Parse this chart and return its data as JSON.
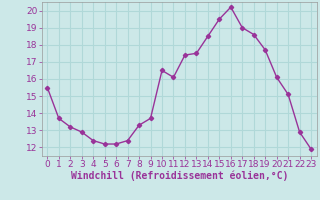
{
  "x": [
    0,
    1,
    2,
    3,
    4,
    5,
    6,
    7,
    8,
    9,
    10,
    11,
    12,
    13,
    14,
    15,
    16,
    17,
    18,
    19,
    20,
    21,
    22,
    23
  ],
  "y": [
    15.5,
    13.7,
    13.2,
    12.9,
    12.4,
    12.2,
    12.2,
    12.4,
    13.3,
    13.7,
    16.5,
    16.1,
    17.4,
    17.5,
    18.5,
    19.5,
    20.2,
    19.0,
    18.6,
    17.7,
    16.1,
    15.1,
    12.9,
    11.9
  ],
  "line_color": "#993399",
  "marker": "D",
  "marker_size": 2.2,
  "bg_color": "#cce8e8",
  "grid_color": "#b0d8d8",
  "xlabel": "Windchill (Refroidissement éolien,°C)",
  "xlabel_fontsize": 7,
  "ylim": [
    11.5,
    20.5
  ],
  "yticks": [
    12,
    13,
    14,
    15,
    16,
    17,
    18,
    19,
    20
  ],
  "xticks": [
    0,
    1,
    2,
    3,
    4,
    5,
    6,
    7,
    8,
    9,
    10,
    11,
    12,
    13,
    14,
    15,
    16,
    17,
    18,
    19,
    20,
    21,
    22,
    23
  ],
  "tick_fontsize": 6.5,
  "tick_color": "#993399",
  "spine_color": "#999999",
  "linewidth": 1.0
}
